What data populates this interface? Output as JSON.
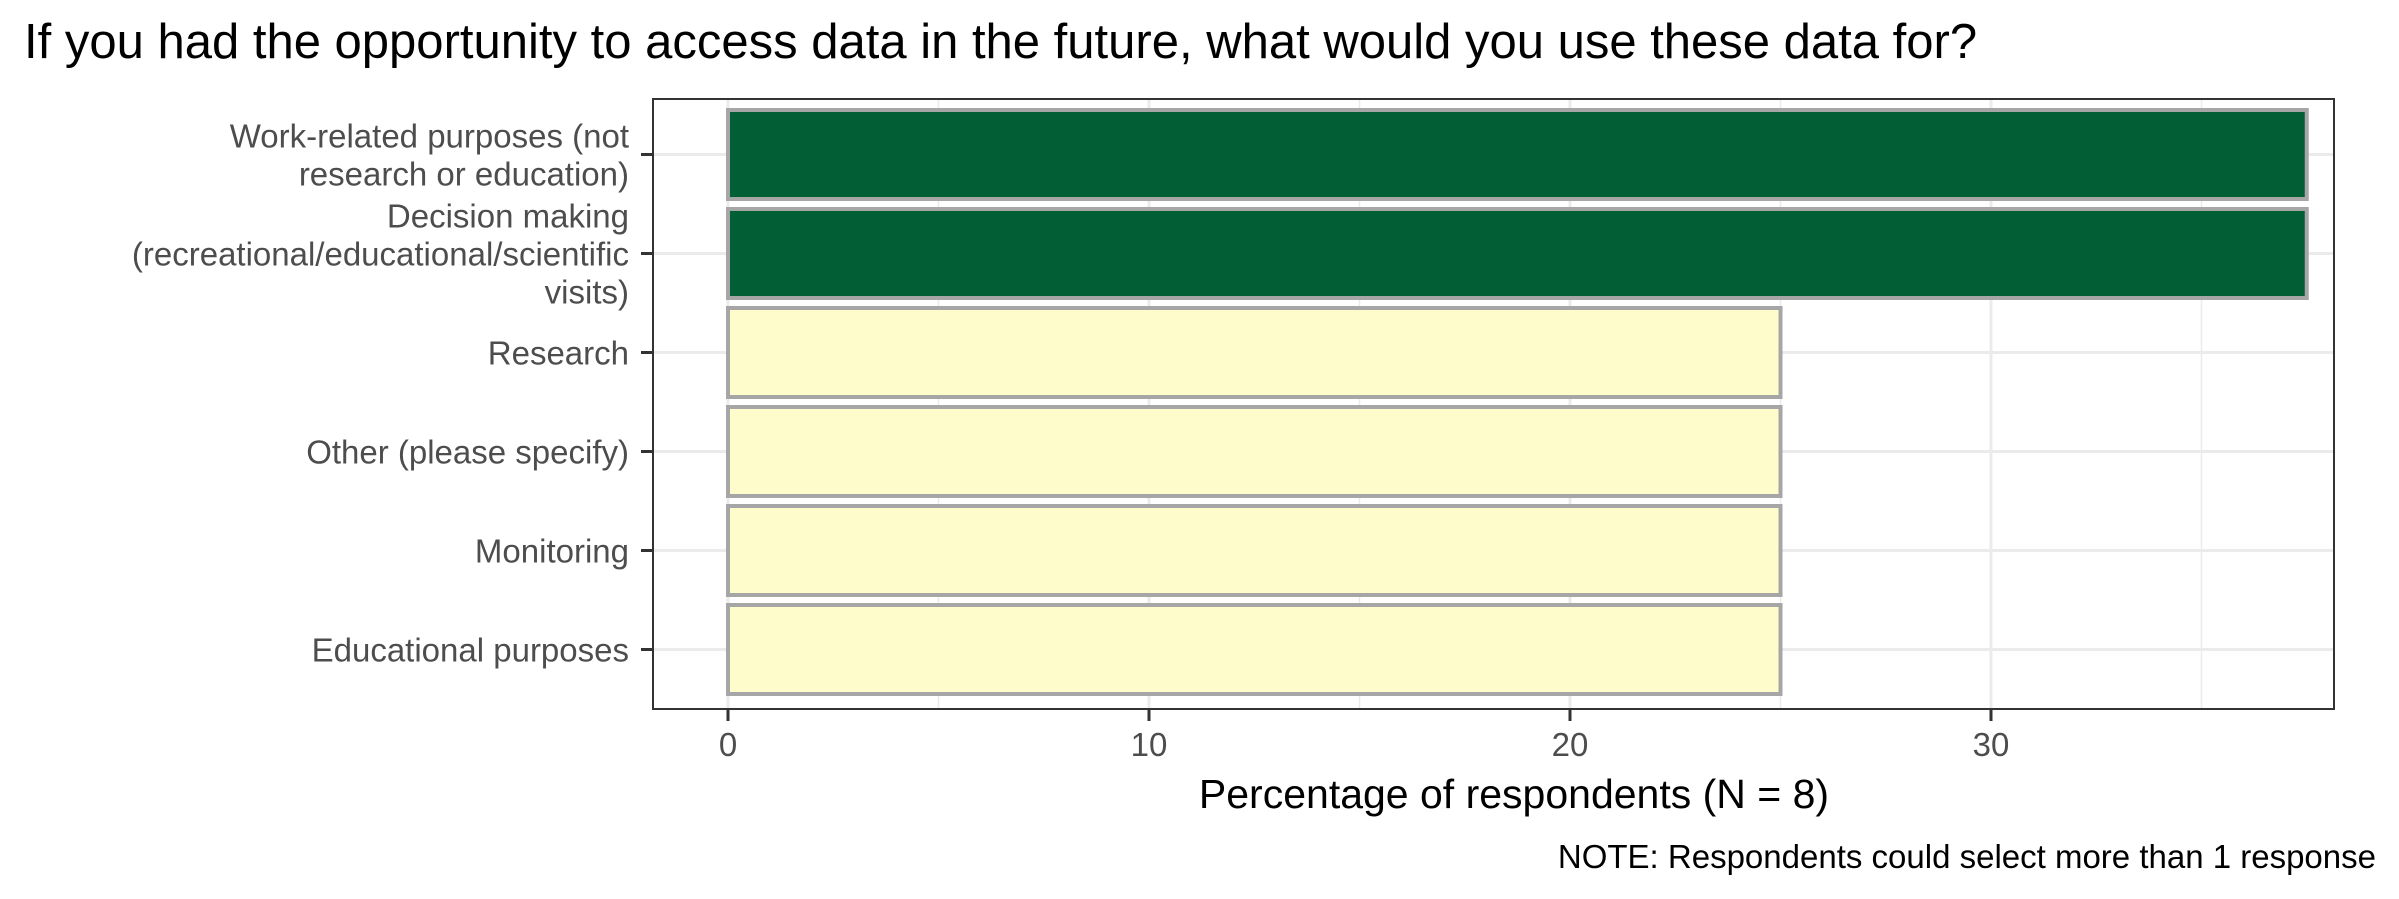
{
  "chart_data": {
    "type": "bar",
    "orientation": "horizontal",
    "title": "If you had the opportunity to access data in the future, what would you use these data for?",
    "xlabel": "Percentage of respondents (N = 8)",
    "ylabel": "",
    "note": "NOTE: Respondents could select more than 1 response",
    "categories": [
      [
        "Work-related purposes (not",
        "research or education)"
      ],
      [
        "Decision making",
        "(recreational/educational/scientific",
        "visits)"
      ],
      [
        "Research"
      ],
      [
        "Other (please specify)"
      ],
      [
        "Monitoring"
      ],
      [
        "Educational purposes"
      ]
    ],
    "values": [
      37.5,
      37.5,
      25,
      25,
      25,
      25
    ],
    "highlight": [
      true,
      true,
      false,
      false,
      false,
      false
    ],
    "colors": {
      "highlight": "#025e34",
      "normal": "#fffccc",
      "bar_border": "#a6a6a6",
      "grid": "#ebebeb",
      "panel_border": "#333333"
    },
    "xlim": [
      -1.8,
      38.8
    ],
    "xticks": [
      0,
      10,
      20,
      30
    ],
    "grid": true,
    "legend": "none"
  }
}
